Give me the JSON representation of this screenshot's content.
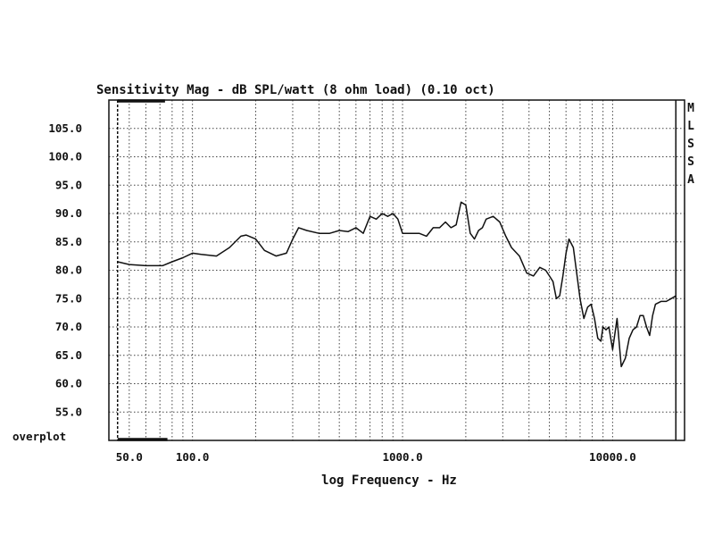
{
  "chart_data": {
    "type": "line",
    "title": "Sensitivity Mag - dB SPL/watt (8 ohm load) (0.10 oct)",
    "xlabel": "log Frequency - Hz",
    "ylabel": "",
    "x_scale": "log",
    "xlim": [
      40,
      22000
    ],
    "ylim": [
      50,
      110
    ],
    "y_ticks": [
      55.0,
      60.0,
      65.0,
      70.0,
      75.0,
      80.0,
      85.0,
      90.0,
      95.0,
      100.0,
      105.0
    ],
    "y_tick_labels": [
      "55.0",
      "60.0",
      "65.0",
      "70.0",
      "75.0",
      "80.0",
      "85.0",
      "90.0",
      "95.0",
      "100.0",
      "105.0"
    ],
    "x_tick_labels": [
      {
        "value": 50,
        "label": "50.0"
      },
      {
        "value": 100,
        "label": "100.0"
      },
      {
        "value": 1000,
        "label": "1000.0"
      },
      {
        "value": 10000,
        "label": "10000.0"
      }
    ],
    "grid": true,
    "bottom_label": "overplot",
    "side_label": [
      "M",
      "L",
      "S",
      "S",
      "A"
    ],
    "series": [
      {
        "x": [
          44,
          50,
          60,
          72,
          80,
          90,
          100,
          110,
          130,
          150,
          170,
          180,
          200,
          220,
          250,
          280,
          300,
          320,
          350,
          400,
          450,
          500,
          550,
          600,
          650,
          700,
          750,
          800,
          850,
          900,
          950,
          1000,
          1100,
          1200,
          1300,
          1400,
          1500,
          1600,
          1700,
          1800,
          1900,
          2000,
          2100,
          2200,
          2300,
          2400,
          2500,
          2700,
          2900,
          3100,
          3300,
          3600,
          3900,
          4200,
          4500,
          4800,
          5000,
          5200,
          5400,
          5600,
          5800,
          6000,
          6200,
          6500,
          6800,
          7000,
          7300,
          7600,
          7900,
          8200,
          8500,
          8800,
          9000,
          9300,
          9600,
          10000,
          10500,
          11000,
          11500,
          12000,
          12500,
          13000,
          13500,
          14000,
          14500,
          15000,
          15500,
          16000,
          17000,
          18000,
          19000,
          20000
        ],
        "y": [
          81.5,
          81.0,
          80.8,
          80.8,
          81.5,
          82.2,
          83.0,
          82.8,
          82.5,
          84.0,
          86.0,
          86.2,
          85.5,
          83.5,
          82.5,
          83.0,
          85.5,
          87.5,
          87.0,
          86.5,
          86.5,
          87.0,
          86.8,
          87.5,
          86.5,
          89.5,
          89.0,
          90.0,
          89.5,
          90.0,
          89.0,
          86.5,
          86.5,
          86.5,
          86.0,
          87.5,
          87.5,
          88.5,
          87.5,
          88.0,
          92.0,
          91.5,
          86.5,
          85.5,
          87.0,
          87.5,
          89.0,
          89.5,
          88.5,
          86.0,
          84.0,
          82.5,
          79.5,
          79.0,
          80.5,
          80.0,
          79.0,
          78.0,
          75.0,
          75.5,
          79.0,
          83.0,
          85.5,
          84.0,
          78.5,
          75.0,
          71.5,
          73.5,
          74.0,
          71.5,
          68.0,
          67.5,
          70.0,
          69.5,
          70.0,
          66.0,
          71.5,
          63.0,
          64.5,
          68.0,
          69.5,
          70.0,
          72.0,
          72.0,
          70.0,
          68.5,
          72.0,
          74.0,
          74.5,
          74.5,
          75.0,
          75.5
        ]
      }
    ]
  },
  "colors": {
    "ink": "#111111",
    "grid": "#444444",
    "background": "#ffffff"
  }
}
